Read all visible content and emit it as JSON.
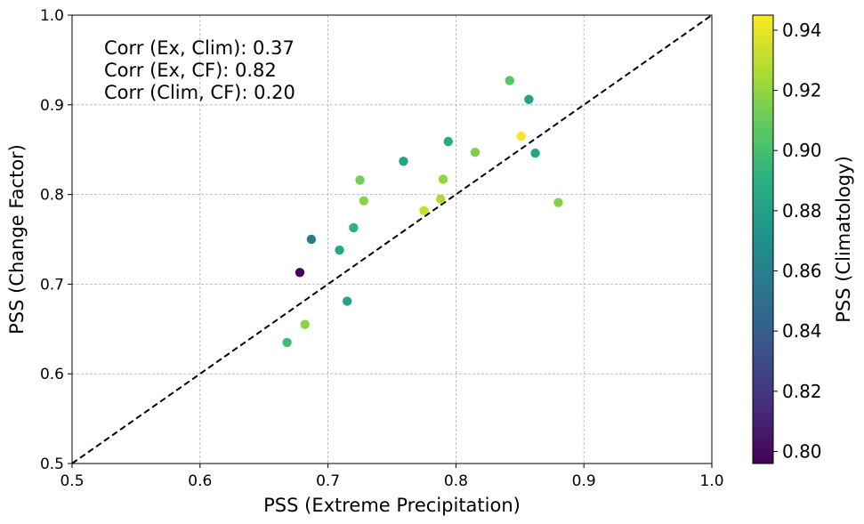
{
  "chart_data": {
    "type": "scatter",
    "title": "",
    "xlabel": "PSS (Extreme Precipitation)",
    "ylabel": "PSS (Change Factor)",
    "xlim": [
      0.5,
      1.0
    ],
    "ylim": [
      0.5,
      1.0
    ],
    "x_ticks": [
      "0.5",
      "0.6",
      "0.7",
      "0.8",
      "0.9",
      "1.0"
    ],
    "y_ticks": [
      "0.5",
      "0.6",
      "0.7",
      "0.8",
      "0.9",
      "1.0"
    ],
    "grid": true,
    "reference_line": {
      "style": "dashed",
      "color": "#000000",
      "from": [
        0.5,
        0.5
      ],
      "to": [
        1.0,
        1.0
      ]
    },
    "colorbar": {
      "label": "PSS (Climatology)",
      "colormap": "viridis",
      "range": [
        0.796,
        0.945
      ],
      "ticks": [
        "0.80",
        "0.82",
        "0.84",
        "0.86",
        "0.88",
        "0.90",
        "0.92",
        "0.94"
      ]
    },
    "annotations": [
      "Corr (Ex, Clim): 0.37",
      "Corr (Ex, CF): 0.82",
      "Corr (Clim, CF): 0.20"
    ],
    "points": [
      {
        "x": 0.678,
        "y": 0.713,
        "c": 0.797
      },
      {
        "x": 0.687,
        "y": 0.75,
        "c": 0.858
      },
      {
        "x": 0.668,
        "y": 0.635,
        "c": 0.898
      },
      {
        "x": 0.682,
        "y": 0.655,
        "c": 0.918
      },
      {
        "x": 0.709,
        "y": 0.738,
        "c": 0.886
      },
      {
        "x": 0.715,
        "y": 0.681,
        "c": 0.882
      },
      {
        "x": 0.72,
        "y": 0.763,
        "c": 0.892
      },
      {
        "x": 0.725,
        "y": 0.816,
        "c": 0.912
      },
      {
        "x": 0.728,
        "y": 0.793,
        "c": 0.918
      },
      {
        "x": 0.759,
        "y": 0.837,
        "c": 0.882
      },
      {
        "x": 0.775,
        "y": 0.782,
        "c": 0.932
      },
      {
        "x": 0.788,
        "y": 0.795,
        "c": 0.926
      },
      {
        "x": 0.79,
        "y": 0.817,
        "c": 0.92
      },
      {
        "x": 0.794,
        "y": 0.859,
        "c": 0.886
      },
      {
        "x": 0.815,
        "y": 0.847,
        "c": 0.915
      },
      {
        "x": 0.842,
        "y": 0.927,
        "c": 0.905
      },
      {
        "x": 0.851,
        "y": 0.865,
        "c": 0.944
      },
      {
        "x": 0.857,
        "y": 0.906,
        "c": 0.88
      },
      {
        "x": 0.862,
        "y": 0.846,
        "c": 0.883
      },
      {
        "x": 0.88,
        "y": 0.791,
        "c": 0.917
      }
    ]
  }
}
